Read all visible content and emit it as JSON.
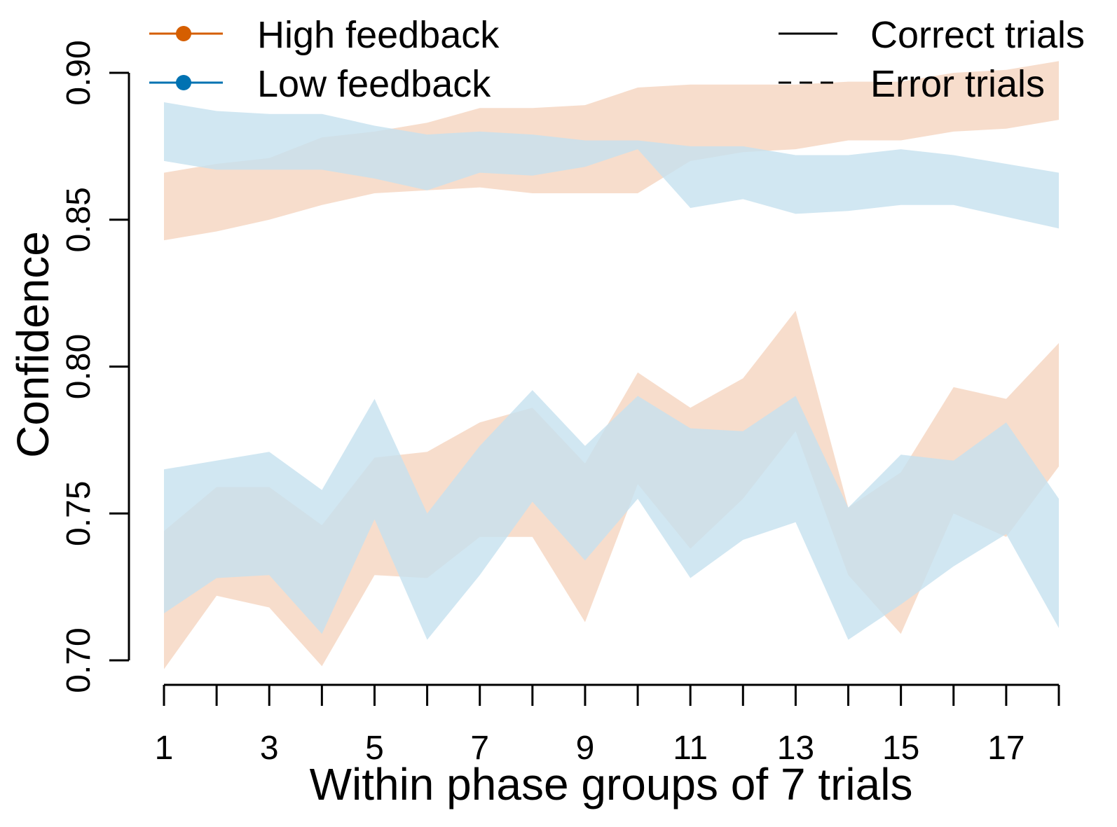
{
  "chart_data": {
    "type": "area",
    "title": "",
    "xlabel": "Within phase groups of 7 trials",
    "ylabel": "Confidence",
    "xlim": [
      1,
      18
    ],
    "ylim": [
      0.7,
      0.9
    ],
    "x": [
      1,
      2,
      3,
      4,
      5,
      6,
      7,
      8,
      9,
      10,
      11,
      12,
      13,
      14,
      15,
      16,
      17,
      18
    ],
    "x_ticks": [
      1,
      2,
      3,
      4,
      5,
      6,
      7,
      8,
      9,
      10,
      11,
      12,
      13,
      14,
      15,
      16,
      17,
      18
    ],
    "x_tick_labels": [
      "1",
      "",
      "3",
      "",
      "5",
      "",
      "7",
      "",
      "9",
      "",
      "11",
      "",
      "13",
      "",
      "15",
      "",
      "17",
      ""
    ],
    "y_ticks": [
      0.7,
      0.75,
      0.8,
      0.85,
      0.9
    ],
    "y_tick_labels": [
      "0.70",
      "0.75",
      "0.80",
      "0.85",
      "0.90"
    ],
    "grid": false,
    "legend": {
      "placement": "top",
      "feedback": [
        {
          "label": "High feedback",
          "color": "#D55E00"
        },
        {
          "label": "Low feedback",
          "color": "#0072B2"
        }
      ],
      "trial_type": [
        {
          "label": "Correct trials",
          "linestyle": "solid"
        },
        {
          "label": "Error trials",
          "linestyle": "dashed"
        }
      ]
    },
    "series": [
      {
        "name": "High feedback",
        "trial_type": "Correct trials",
        "fill": "#F5D5BF",
        "lower": [
          0.843,
          0.846,
          0.85,
          0.855,
          0.859,
          0.86,
          0.861,
          0.859,
          0.859,
          0.859,
          0.87,
          0.873,
          0.874,
          0.877,
          0.877,
          0.88,
          0.881,
          0.884
        ],
        "upper": [
          0.866,
          0.869,
          0.871,
          0.878,
          0.88,
          0.883,
          0.888,
          0.888,
          0.889,
          0.895,
          0.896,
          0.896,
          0.896,
          0.897,
          0.897,
          0.9,
          0.901,
          0.904
        ]
      },
      {
        "name": "Low feedback",
        "trial_type": "Correct trials",
        "fill": "#C6E1EF",
        "lower": [
          0.87,
          0.867,
          0.867,
          0.867,
          0.864,
          0.86,
          0.866,
          0.865,
          0.868,
          0.874,
          0.854,
          0.857,
          0.852,
          0.853,
          0.855,
          0.855,
          0.851,
          0.847
        ],
        "upper": [
          0.89,
          0.887,
          0.886,
          0.886,
          0.882,
          0.879,
          0.88,
          0.879,
          0.877,
          0.877,
          0.875,
          0.875,
          0.872,
          0.872,
          0.874,
          0.872,
          0.869,
          0.866
        ]
      },
      {
        "name": "High feedback",
        "trial_type": "Error trials",
        "fill": "#F5D5BF",
        "lower": [
          0.697,
          0.722,
          0.718,
          0.698,
          0.729,
          0.728,
          0.742,
          0.742,
          0.713,
          0.76,
          0.738,
          0.755,
          0.778,
          0.729,
          0.709,
          0.75,
          0.742,
          0.766
        ],
        "upper": [
          0.744,
          0.759,
          0.759,
          0.746,
          0.769,
          0.771,
          0.781,
          0.786,
          0.767,
          0.798,
          0.786,
          0.796,
          0.819,
          0.752,
          0.764,
          0.793,
          0.789,
          0.808
        ]
      },
      {
        "name": "Low feedback",
        "trial_type": "Error trials",
        "fill": "#C6E1EF",
        "lower": [
          0.716,
          0.728,
          0.729,
          0.709,
          0.748,
          0.707,
          0.729,
          0.754,
          0.734,
          0.755,
          0.728,
          0.741,
          0.747,
          0.707,
          0.719,
          0.732,
          0.743,
          0.711
        ],
        "upper": [
          0.765,
          0.768,
          0.771,
          0.758,
          0.789,
          0.75,
          0.773,
          0.792,
          0.773,
          0.79,
          0.779,
          0.778,
          0.79,
          0.752,
          0.77,
          0.768,
          0.781,
          0.755
        ]
      }
    ]
  }
}
